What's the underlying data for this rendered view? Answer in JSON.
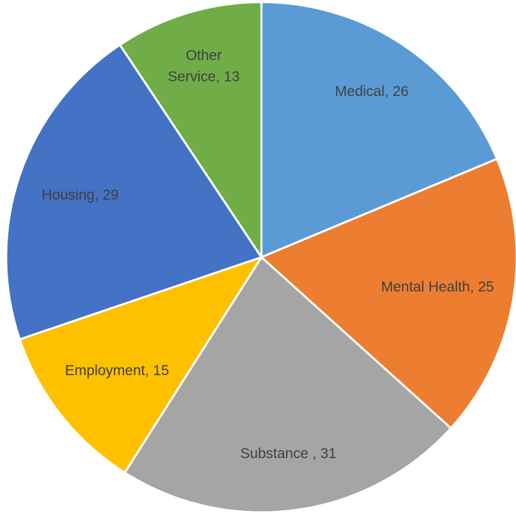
{
  "chart_data": {
    "type": "pie",
    "values": [
      26,
      25,
      31,
      15,
      29,
      13
    ],
    "value_labels": [
      "Medical, 26",
      "Mental Health, 25",
      "Substance , 31",
      "Employment, 15",
      "Housing, 29",
      "Other Service, 13"
    ],
    "colors": [
      "#5b9bd5",
      "#ed7d31",
      "#a5a5a5",
      "#ffc000",
      "#4472c4",
      "#70ad47"
    ]
  }
}
